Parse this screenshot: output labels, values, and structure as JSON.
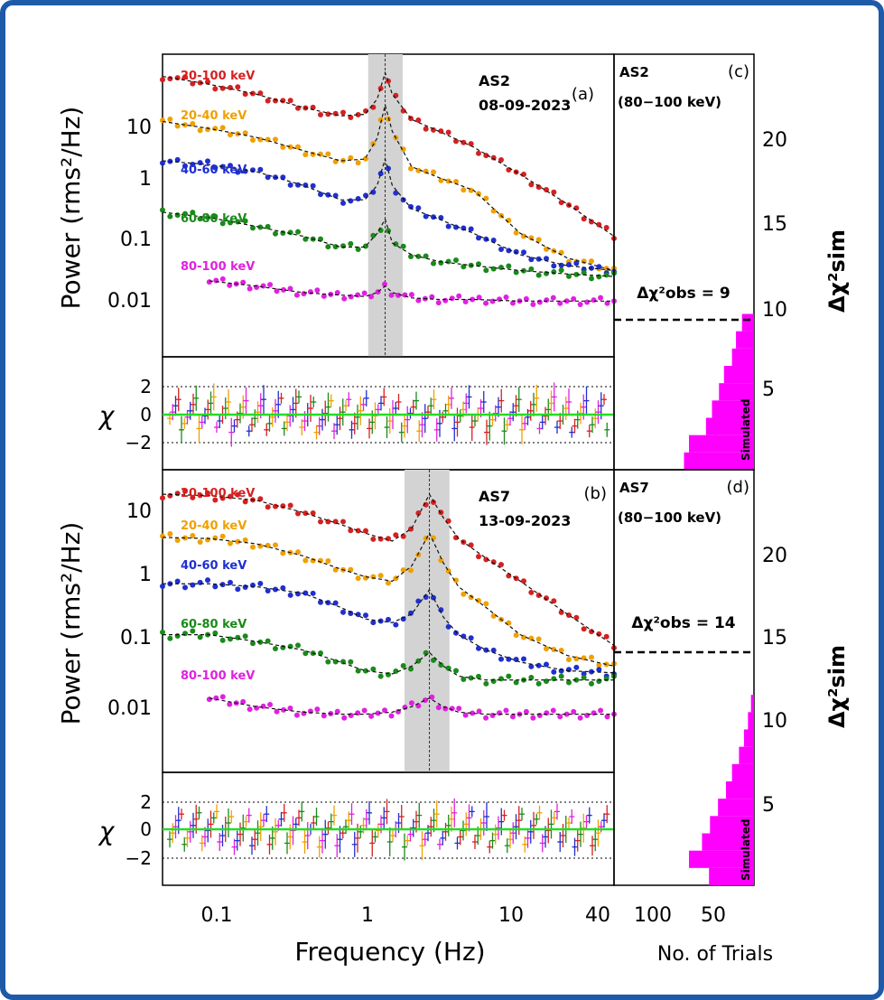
{
  "colors": {
    "frame": "#1e5aa8",
    "band_20_100": "#d62020",
    "band_20_40": "#f0a000",
    "band_40_60": "#1f2fd0",
    "band_60_80": "#1a8a1a",
    "band_80_100": "#e020e0",
    "shade": "#d3d3d3",
    "zero_line": "#22dd22",
    "hist": "#ff00ff"
  },
  "axes": {
    "power_ylabel": "Power (rms²/Hz)",
    "chi_ylabel": "χ",
    "xlabel": "Frequency (Hz)",
    "hist_xlabel": "No. of Trials",
    "hist_ylabel": "Δχ²sim",
    "freq_ticks": [
      "0.1",
      "1",
      "10",
      "40"
    ],
    "power_ticks_top": [
      "10",
      "1",
      "0.1",
      "0.01"
    ],
    "power_ticks_bottom": [
      "10",
      "1",
      "0.1",
      "0.01"
    ],
    "chi_ticks": [
      "2",
      "0",
      "−2"
    ],
    "hist_x_ticks": [
      "100",
      "50"
    ],
    "hist_y_ticks_top": [
      "20",
      "15",
      "10",
      "5"
    ],
    "hist_y_ticks_bottom": [
      "20",
      "15",
      "10",
      "5"
    ],
    "simulated_label": "Simulated"
  },
  "chart_data": [
    {
      "panel": "a",
      "type": "line",
      "panel_label": "(a)",
      "obs_name": "AS2",
      "obs_date": "08-09-2023",
      "x_scale": "log",
      "y_scale": "log",
      "xlim": [
        0.05,
        40
      ],
      "ylim": [
        0.001,
        80
      ],
      "qpo_hz": 1.35,
      "shade_hz": [
        1.05,
        1.75
      ],
      "series": [
        {
          "name": "20-100 keV",
          "x": [
            0.05,
            0.1,
            0.2,
            0.4,
            0.7,
            1.0,
            1.2,
            1.35,
            1.5,
            2.0,
            3.0,
            5.0,
            10,
            20,
            40
          ],
          "y": [
            35,
            26,
            18,
            11,
            8,
            8.5,
            15,
            40,
            18,
            7,
            4.5,
            2.5,
            0.9,
            0.3,
            0.09
          ]
        },
        {
          "name": "20-40 keV",
          "x": [
            0.05,
            0.1,
            0.2,
            0.4,
            0.7,
            1.0,
            1.2,
            1.35,
            1.5,
            2.0,
            3.0,
            5.0,
            10,
            20,
            40
          ],
          "y": [
            6.5,
            5,
            3.6,
            2.2,
            1.5,
            1.6,
            3.5,
            12,
            4.5,
            1.2,
            0.8,
            0.5,
            0.1,
            0.04,
            0.025
          ]
        },
        {
          "name": "40-60 keV",
          "x": [
            0.05,
            0.1,
            0.2,
            0.4,
            0.7,
            1.0,
            1.2,
            1.35,
            1.5,
            2.0,
            3.0,
            5.0,
            10,
            20,
            40
          ],
          "y": [
            1.5,
            1.3,
            1.0,
            0.6,
            0.35,
            0.35,
            0.6,
            1.6,
            0.6,
            0.25,
            0.17,
            0.1,
            0.045,
            0.03,
            0.025
          ]
        },
        {
          "name": "60-80 keV",
          "x": [
            0.05,
            0.1,
            0.2,
            0.4,
            0.7,
            1.0,
            1.2,
            1.35,
            1.5,
            2.0,
            3.0,
            5.0,
            10,
            20,
            40
          ],
          "y": [
            0.22,
            0.18,
            0.13,
            0.09,
            0.06,
            0.06,
            0.1,
            0.17,
            0.07,
            0.045,
            0.035,
            0.03,
            0.025,
            0.022,
            0.02
          ]
        },
        {
          "name": "80-100 keV",
          "x": [
            0.1,
            0.2,
            0.4,
            0.7,
            1.0,
            1.2,
            1.35,
            1.5,
            2.0,
            3.0,
            5.0,
            10,
            20,
            40
          ],
          "y": [
            0.017,
            0.014,
            0.011,
            0.01,
            0.0095,
            0.011,
            0.014,
            0.011,
            0.009,
            0.0085,
            0.0085,
            0.008,
            0.008,
            0.008
          ]
        }
      ]
    },
    {
      "panel": "b",
      "type": "line",
      "panel_label": "(b)",
      "obs_name": "AS7",
      "obs_date": "13-09-2023",
      "x_scale": "log",
      "y_scale": "log",
      "xlim": [
        0.05,
        40
      ],
      "ylim": [
        0.001,
        25
      ],
      "qpo_hz": 2.6,
      "shade_hz": [
        1.8,
        3.5
      ],
      "series": [
        {
          "name": "20-100 keV",
          "x": [
            0.05,
            0.1,
            0.2,
            0.4,
            0.7,
            1.0,
            1.5,
            2.0,
            2.6,
            3.2,
            4.0,
            6.0,
            10,
            20,
            40
          ],
          "y": [
            11,
            10.5,
            9,
            6,
            4,
            3,
            2.3,
            3.5,
            11,
            5,
            2.5,
            1.3,
            0.6,
            0.2,
            0.07
          ]
        },
        {
          "name": "20-40 keV",
          "x": [
            0.05,
            0.1,
            0.2,
            0.4,
            0.7,
            1.0,
            1.5,
            2.0,
            2.6,
            3.2,
            4.0,
            6.0,
            10,
            20,
            40
          ],
          "y": [
            2.6,
            2.5,
            2.1,
            1.4,
            0.9,
            0.7,
            0.6,
            1.0,
            3.0,
            1.1,
            0.5,
            0.25,
            0.1,
            0.05,
            0.035
          ]
        },
        {
          "name": "40-60 keV",
          "x": [
            0.05,
            0.1,
            0.2,
            0.4,
            0.7,
            1.0,
            1.5,
            2.0,
            2.6,
            3.2,
            4.0,
            6.0,
            10,
            20,
            40
          ],
          "y": [
            0.55,
            0.55,
            0.5,
            0.4,
            0.25,
            0.17,
            0.15,
            0.2,
            0.45,
            0.18,
            0.1,
            0.06,
            0.04,
            0.03,
            0.028
          ]
        },
        {
          "name": "60-80 keV",
          "x": [
            0.05,
            0.1,
            0.2,
            0.4,
            0.7,
            1.0,
            1.5,
            2.0,
            2.6,
            3.2,
            4.0,
            6.0,
            10,
            20,
            40
          ],
          "y": [
            0.1,
            0.1,
            0.08,
            0.06,
            0.04,
            0.03,
            0.027,
            0.035,
            0.055,
            0.035,
            0.025,
            0.022,
            0.022,
            0.022,
            0.022
          ]
        },
        {
          "name": "80-100 keV",
          "x": [
            0.1,
            0.2,
            0.4,
            0.7,
            1.0,
            1.5,
            2.0,
            2.6,
            3.2,
            4.0,
            6.0,
            10,
            20,
            40
          ],
          "y": [
            0.012,
            0.009,
            0.0075,
            0.007,
            0.007,
            0.0075,
            0.009,
            0.012,
            0.009,
            0.0075,
            0.007,
            0.007,
            0.007,
            0.007
          ]
        }
      ]
    },
    {
      "panel": "c",
      "type": "bar",
      "panel_label": "(c)",
      "obs_name": "AS2",
      "band": "(80−100 keV)",
      "annotation": "Δχ²obs = 9",
      "observed_delta_chi2": 9,
      "x_label": "No. of Trials",
      "bin_centers": [
        0.5,
        1.5,
        2.5,
        3.5,
        4.5,
        5.5,
        6.5,
        7.5,
        8.5
      ],
      "counts": [
        70,
        65,
        48,
        42,
        35,
        30,
        22,
        18,
        12
      ],
      "xlim_reversed": [
        0,
        140
      ],
      "ylim": [
        0,
        24
      ]
    },
    {
      "panel": "d",
      "type": "bar",
      "panel_label": "(d)",
      "obs_name": "AS7",
      "band": "(80−100 keV)",
      "annotation": "Δχ²obs = 14",
      "observed_delta_chi2": 14,
      "x_label": "No. of Trials",
      "bin_centers": [
        0.5,
        1.5,
        2.5,
        3.5,
        4.5,
        5.5,
        6.5,
        7.5,
        8.5,
        9.5,
        10.5
      ],
      "counts": [
        45,
        65,
        52,
        44,
        36,
        28,
        22,
        15,
        10,
        6,
        3
      ],
      "xlim_reversed": [
        0,
        140
      ],
      "ylim": [
        0,
        24
      ]
    }
  ]
}
